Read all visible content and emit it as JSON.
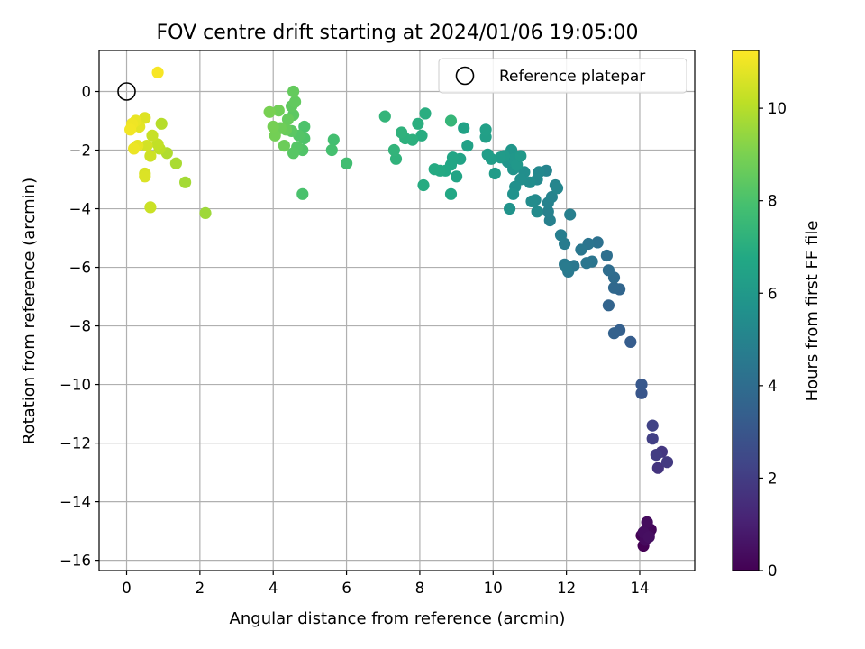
{
  "chart_data": {
    "type": "scatter",
    "title": "FOV centre drift starting at 2024/01/06 19:05:00",
    "xlabel": "Angular distance from reference (arcmin)",
    "ylabel": "Rotation from reference (arcmin)",
    "xlim": [
      -0.75,
      15.5
    ],
    "ylim": [
      -16.35,
      1.4
    ],
    "xticks": [
      0,
      2,
      4,
      6,
      8,
      10,
      12,
      14
    ],
    "yticks": [
      0,
      -2,
      -4,
      -6,
      -8,
      -10,
      -12,
      -14,
      -16
    ],
    "grid": true,
    "legend": {
      "placement": "top-right",
      "entries": [
        "Reference platepar"
      ]
    },
    "reference_point": {
      "name": "Reference platepar",
      "x": 0,
      "y": 0
    },
    "colorbar": {
      "label": "Hours from first FF file",
      "colormap": "viridis",
      "range": [
        0,
        11.25
      ],
      "ticks": [
        0,
        2,
        4,
        6,
        8,
        10
      ]
    },
    "points": [
      [
        14.1,
        -15.5,
        0.0
      ],
      [
        14.05,
        -15.15,
        0.05
      ],
      [
        14.15,
        -15.0,
        0.1
      ],
      [
        14.2,
        -14.9,
        0.15
      ],
      [
        14.3,
        -14.95,
        0.2
      ],
      [
        14.25,
        -15.1,
        0.25
      ],
      [
        14.15,
        -15.3,
        0.3
      ],
      [
        14.2,
        -14.7,
        0.35
      ],
      [
        14.1,
        -15.05,
        0.4
      ],
      [
        14.25,
        -15.2,
        0.45
      ],
      [
        14.5,
        -12.85,
        1.7
      ],
      [
        14.6,
        -12.3,
        1.8
      ],
      [
        14.75,
        -12.65,
        1.9
      ],
      [
        14.45,
        -12.4,
        2.0
      ],
      [
        14.35,
        -11.85,
        2.1
      ],
      [
        14.35,
        -11.4,
        2.2
      ],
      [
        14.05,
        -10.3,
        3.0
      ],
      [
        14.05,
        -10.0,
        3.1
      ],
      [
        13.75,
        -8.55,
        3.3
      ],
      [
        13.45,
        -8.15,
        3.4
      ],
      [
        13.3,
        -8.25,
        3.5
      ],
      [
        13.15,
        -7.3,
        3.6
      ],
      [
        13.45,
        -6.75,
        3.7
      ],
      [
        13.3,
        -6.7,
        3.8
      ],
      [
        13.3,
        -6.35,
        3.9
      ],
      [
        13.15,
        -6.1,
        4.0
      ],
      [
        13.1,
        -5.6,
        4.1
      ],
      [
        12.85,
        -5.15,
        4.2
      ],
      [
        12.6,
        -5.2,
        4.3
      ],
      [
        12.7,
        -5.8,
        4.35
      ],
      [
        12.55,
        -5.85,
        4.4
      ],
      [
        12.4,
        -5.4,
        4.45
      ],
      [
        12.2,
        -5.95,
        4.5
      ],
      [
        12.05,
        -6.15,
        4.55
      ],
      [
        11.95,
        -5.9,
        4.6
      ],
      [
        12.0,
        -6.0,
        4.65
      ],
      [
        11.95,
        -5.2,
        4.7
      ],
      [
        11.85,
        -4.9,
        4.75
      ],
      [
        12.1,
        -4.2,
        4.8
      ],
      [
        11.55,
        -4.4,
        4.85
      ],
      [
        11.5,
        -4.1,
        4.9
      ],
      [
        11.5,
        -3.8,
        4.95
      ],
      [
        11.6,
        -3.6,
        5.0
      ],
      [
        11.45,
        -2.7,
        5.05
      ],
      [
        11.7,
        -3.2,
        5.1
      ],
      [
        11.75,
        -3.3,
        5.15
      ],
      [
        11.25,
        -2.75,
        5.2
      ],
      [
        11.2,
        -3.0,
        5.25
      ],
      [
        11.15,
        -3.7,
        5.3
      ],
      [
        11.2,
        -4.1,
        5.35
      ],
      [
        11.05,
        -3.75,
        5.4
      ],
      [
        11.0,
        -3.1,
        5.45
      ],
      [
        10.85,
        -2.75,
        5.5
      ],
      [
        10.75,
        -3.0,
        5.55
      ],
      [
        10.6,
        -3.25,
        5.6
      ],
      [
        10.55,
        -3.5,
        5.65
      ],
      [
        10.45,
        -4.0,
        5.7
      ],
      [
        10.55,
        -2.65,
        5.75
      ],
      [
        10.4,
        -2.4,
        5.8
      ],
      [
        10.5,
        -2.0,
        5.85
      ],
      [
        10.55,
        -2.3,
        5.9
      ],
      [
        10.65,
        -2.5,
        5.95
      ],
      [
        10.75,
        -2.2,
        6.0
      ],
      [
        10.3,
        -2.2,
        6.05
      ],
      [
        10.2,
        -2.25,
        6.1
      ],
      [
        10.05,
        -2.8,
        6.15
      ],
      [
        9.95,
        -2.3,
        6.2
      ],
      [
        9.85,
        -2.15,
        6.25
      ],
      [
        9.8,
        -1.55,
        6.3
      ],
      [
        9.8,
        -1.3,
        6.35
      ],
      [
        9.3,
        -1.85,
        6.4
      ],
      [
        9.2,
        -1.25,
        6.45
      ],
      [
        9.1,
        -2.3,
        6.5
      ],
      [
        9.0,
        -2.9,
        6.55
      ],
      [
        8.9,
        -2.25,
        6.6
      ],
      [
        8.85,
        -2.5,
        6.65
      ],
      [
        8.85,
        -3.5,
        6.7
      ],
      [
        8.7,
        -2.7,
        6.75
      ],
      [
        8.55,
        -2.7,
        6.8
      ],
      [
        8.4,
        -2.65,
        6.85
      ],
      [
        8.1,
        -3.2,
        6.9
      ],
      [
        8.05,
        -1.5,
        6.95
      ],
      [
        8.15,
        -0.75,
        7.0
      ],
      [
        7.95,
        -1.1,
        7.05
      ],
      [
        7.8,
        -1.65,
        7.1
      ],
      [
        7.6,
        -1.6,
        7.15
      ],
      [
        7.5,
        -1.4,
        7.2
      ],
      [
        7.35,
        -2.3,
        7.25
      ],
      [
        7.3,
        -2.0,
        7.3
      ],
      [
        7.05,
        -0.85,
        7.35
      ],
      [
        8.85,
        -1.0,
        7.4
      ],
      [
        6.0,
        -2.45,
        7.8
      ],
      [
        5.65,
        -1.65,
        7.85
      ],
      [
        5.6,
        -2.0,
        7.9
      ],
      [
        4.8,
        -3.5,
        8.0
      ],
      [
        4.85,
        -1.2,
        8.05
      ],
      [
        4.85,
        -1.6,
        8.1
      ],
      [
        4.8,
        -2.0,
        8.15
      ],
      [
        4.7,
        -1.5,
        8.2
      ],
      [
        4.65,
        -1.9,
        8.25
      ],
      [
        4.55,
        -2.1,
        8.3
      ],
      [
        4.5,
        -1.35,
        8.35
      ],
      [
        4.55,
        -0.8,
        8.4
      ],
      [
        4.5,
        -0.5,
        8.45
      ],
      [
        4.6,
        -0.35,
        8.5
      ],
      [
        4.55,
        0.0,
        8.55
      ],
      [
        4.4,
        -0.95,
        8.6
      ],
      [
        4.35,
        -1.3,
        8.65
      ],
      [
        4.3,
        -1.85,
        8.7
      ],
      [
        4.2,
        -1.25,
        8.75
      ],
      [
        4.15,
        -0.65,
        8.8
      ],
      [
        4.05,
        -1.5,
        8.85
      ],
      [
        4.0,
        -1.2,
        8.9
      ],
      [
        3.9,
        -0.7,
        8.95
      ],
      [
        2.15,
        -4.15,
        9.6
      ],
      [
        1.6,
        -3.1,
        9.7
      ],
      [
        1.35,
        -2.45,
        9.8
      ],
      [
        1.1,
        -2.1,
        9.9
      ],
      [
        0.95,
        -1.1,
        10.0
      ],
      [
        0.9,
        -1.95,
        10.1
      ],
      [
        0.85,
        -1.8,
        10.2
      ],
      [
        0.7,
        -1.5,
        10.3
      ],
      [
        0.65,
        -3.95,
        10.35
      ],
      [
        0.65,
        -2.2,
        10.4
      ],
      [
        0.55,
        -1.85,
        10.5
      ],
      [
        0.5,
        -2.8,
        10.6
      ],
      [
        0.5,
        -2.9,
        10.65
      ],
      [
        0.5,
        -0.9,
        10.7
      ],
      [
        0.35,
        -1.2,
        10.8
      ],
      [
        0.3,
        -1.85,
        10.85
      ],
      [
        0.25,
        -1.0,
        10.9
      ],
      [
        0.2,
        -1.95,
        10.95
      ],
      [
        0.15,
        -1.1,
        11.0
      ],
      [
        0.1,
        -1.3,
        11.05
      ],
      [
        0.85,
        0.65,
        11.15
      ]
    ]
  }
}
